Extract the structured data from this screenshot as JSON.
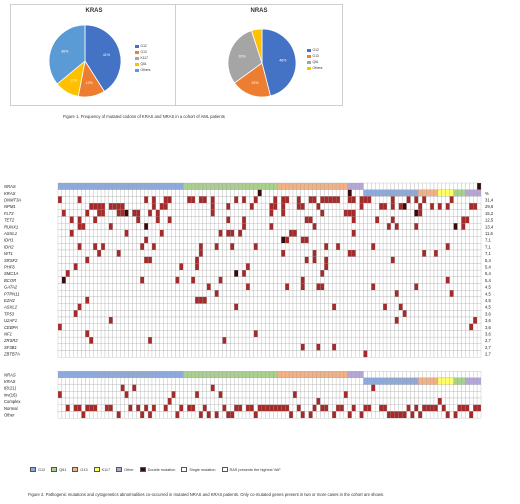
{
  "pies": [
    {
      "id": "kras",
      "title": "KRAS",
      "slices": [
        {
          "label": "G12",
          "value": 41,
          "pct_label": "41%",
          "color": "#4472C4"
        },
        {
          "label": "G13",
          "value": 12,
          "pct_label": "12%",
          "color": "#ED7D31"
        },
        {
          "label": "K117",
          "value": 0,
          "pct_label": "",
          "color": "#A5A5A5"
        },
        {
          "label": "Q61",
          "value": 11,
          "pct_label": "11%",
          "color": "#FFC000"
        },
        {
          "label": "Others",
          "value": 36,
          "pct_label": "36%",
          "color": "#5B9BD5"
        }
      ],
      "legend": [
        "G12",
        "G13",
        "K117",
        "Q61",
        "Others"
      ]
    },
    {
      "id": "nras",
      "title": "NRAS",
      "slices": [
        {
          "label": "G12",
          "value": 46,
          "pct_label": "46%",
          "color": "#4472C4"
        },
        {
          "label": "G13",
          "value": 19,
          "pct_label": "19%",
          "color": "#ED7D31"
        },
        {
          "label": "Q61",
          "value": 30,
          "pct_label": "30%",
          "color": "#A5A5A5"
        },
        {
          "label": "Others",
          "value": 5,
          "pct_label": "",
          "color": "#FFC000"
        }
      ],
      "legend": [
        "G12",
        "G13",
        "Q61",
        "Others"
      ]
    }
  ],
  "captions": {
    "fig1": "Figure 1. Frequency of mutated codons of KRAS and NRAS in a cohort of AML patients",
    "fig2": "Figure 2. Pathogenic mutations and cytogenetics abnormalities co-occurred in mutated NRAS and KRAS patients. Only co-mutated genes present in two or more cases in the cohort are shown."
  },
  "chart_data": {
    "type": "heatmap",
    "row_labels_ras": [
      "NRAS",
      "KRAS"
    ],
    "percent_header": "%",
    "genes": [
      {
        "name": "DNMT3A",
        "pct": "31,4"
      },
      {
        "name": "NPM1",
        "pct": "29,6"
      },
      {
        "name": "FLT3",
        "pct": "15,2"
      },
      {
        "name": "TET2",
        "pct": "12,5"
      },
      {
        "name": "RUNX1",
        "pct": "13,4"
      },
      {
        "name": "ASXL1",
        "pct": "11,6"
      },
      {
        "name": "IDH1",
        "pct": "7,1"
      },
      {
        "name": "IDH2",
        "pct": "7,1"
      },
      {
        "name": "WT1",
        "pct": "7,1"
      },
      {
        "name": "SRSF2",
        "pct": "5,4"
      },
      {
        "name": "PHF6",
        "pct": "5,4"
      },
      {
        "name": "SMC1A",
        "pct": "5,4"
      },
      {
        "name": "BCOR",
        "pct": "5,4"
      },
      {
        "name": "GATA2",
        "pct": "4,5"
      },
      {
        "name": "PTPN11",
        "pct": "4,5"
      },
      {
        "name": "EZH2",
        "pct": "4,5"
      },
      {
        "name": "ASXL2",
        "pct": "4,5"
      },
      {
        "name": "TP53",
        "pct": "3,6"
      },
      {
        "name": "U2AF1",
        "pct": "3,6"
      },
      {
        "name": "CEBPA",
        "pct": "3,6"
      },
      {
        "name": "NF1",
        "pct": "3,6"
      },
      {
        "name": "ZRSR2",
        "pct": "2,7"
      },
      {
        "name": "SF3B1",
        "pct": "2,7"
      },
      {
        "name": "ZBTB7A",
        "pct": "2,7"
      }
    ],
    "cytogenetics": [
      "NRAS",
      "KRAS",
      "t(8;21)",
      "inv(16)",
      "Complex",
      "Normal",
      "Other"
    ],
    "colors": {
      "G12": "#8EA9DB",
      "Q61": "#A9D08E",
      "G13": "#F4B183",
      "K117": "#FFFF66",
      "Other": "#B4A7D6",
      "mutation": "#A52A2A",
      "double": "#3a0a0a",
      "grid": "#9a9a9a"
    }
  },
  "key": [
    {
      "label": "G12",
      "color": "#8EA9DB"
    },
    {
      "label": "Q61",
      "color": "#A9D08E"
    },
    {
      "label": "G13",
      "color": "#F4B183"
    },
    {
      "label": "K117",
      "color": "#FFFF66"
    },
    {
      "label": "Other",
      "color": "#B4A7D6"
    },
    {
      "label": "Double mutation",
      "color": "#3a0a0a"
    },
    {
      "label": "Single mutation",
      "color": "#ffffff"
    },
    {
      "label": "RAS presents the highest VAF",
      "color": "#ffffff"
    }
  ]
}
